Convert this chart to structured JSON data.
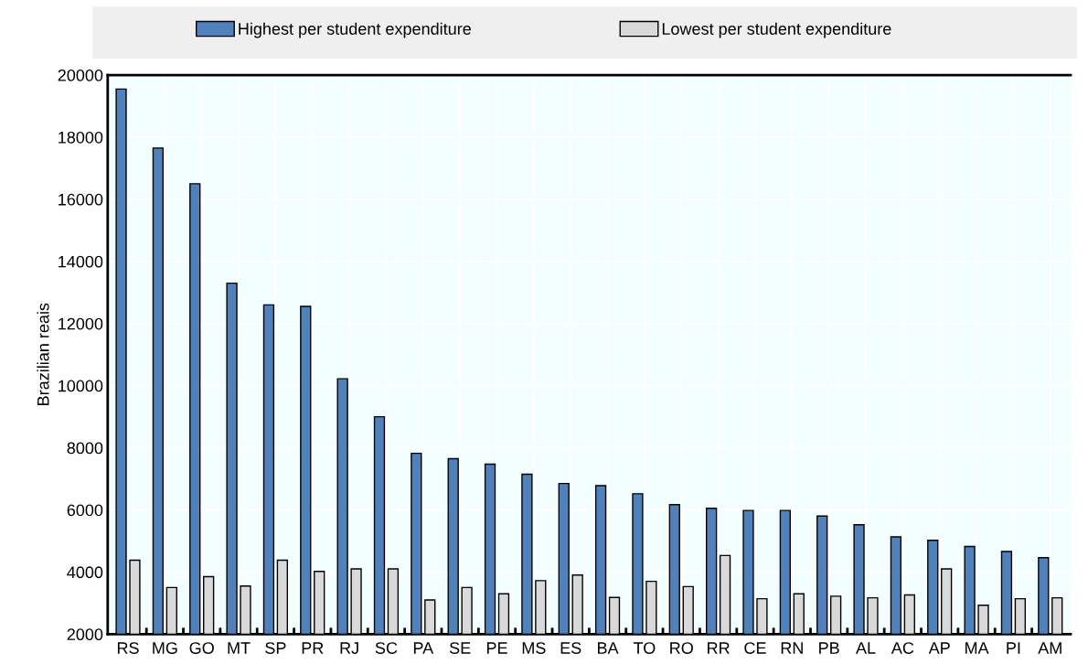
{
  "chart_data": {
    "type": "bar",
    "ylabel": "Brazilian reais",
    "categories": [
      "RS",
      "MG",
      "GO",
      "MT",
      "SP",
      "PR",
      "RJ",
      "SC",
      "PA",
      "SE",
      "PE",
      "MS",
      "ES",
      "BA",
      "TO",
      "RO",
      "RR",
      "CE",
      "RN",
      "PB",
      "AL",
      "AC",
      "AP",
      "MA",
      "PI",
      "AM"
    ],
    "series": [
      {
        "name": "Highest per student expenditure",
        "color": "#4f81bd",
        "values": [
          19550,
          17650,
          16500,
          13300,
          12600,
          12550,
          10220,
          9000,
          7820,
          7650,
          7470,
          7150,
          6850,
          6780,
          6520,
          6170,
          6050,
          5980,
          5980,
          5800,
          5520,
          5130,
          5020,
          4820,
          4660,
          4460
        ]
      },
      {
        "name": "Lowest per student expenditure",
        "color": "#d9d9d9",
        "values": [
          4380,
          3500,
          3850,
          3550,
          4380,
          4020,
          4100,
          4100,
          3100,
          3500,
          3300,
          3720,
          3900,
          3180,
          3700,
          3530,
          4530,
          3140,
          3300,
          3220,
          3170,
          3260,
          4100,
          2930,
          3140,
          3170
        ]
      }
    ],
    "ylim": [
      2000,
      20000
    ],
    "yticks": [
      2000,
      4000,
      6000,
      8000,
      10000,
      12000,
      14000,
      16000,
      18000,
      20000
    ],
    "grid": true,
    "legend": "top"
  }
}
